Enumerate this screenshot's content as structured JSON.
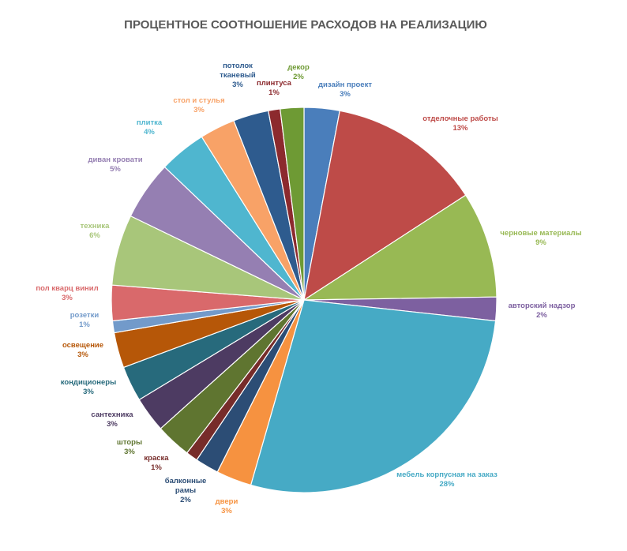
{
  "chart_data": {
    "type": "pie",
    "title": "ПРОЦЕНТНОЕ СООТНОШЕНИЕ РАСХОДОВ НА РЕАЛИЗАЦИЮ",
    "legend": "none",
    "start": "top, clockwise",
    "slices": [
      {
        "name": "дизайн проект",
        "value": 3,
        "label": "3%",
        "color": "#4A7EBB"
      },
      {
        "name": "отделочные работы",
        "value": 13,
        "label": "13%",
        "color": "#BE4B48"
      },
      {
        "name": "черновые материалы",
        "value": 9,
        "label": "9%",
        "color": "#98B954"
      },
      {
        "name": "авторский надзор",
        "value": 2,
        "label": "2%",
        "color": "#7D60A0"
      },
      {
        "name": "мебель корпусная на заказ",
        "value": 28,
        "label": "28%",
        "color": "#46AAC5"
      },
      {
        "name": "двери",
        "value": 3,
        "label": "3%",
        "color": "#F69240"
      },
      {
        "name": "балконные рамы",
        "value": 2,
        "label": "2%",
        "color": "#2C4D75"
      },
      {
        "name": "краска",
        "value": 1,
        "label": "1%",
        "color": "#772C2A"
      },
      {
        "name": "шторы",
        "value": 3,
        "label": "3%",
        "color": "#5F7530"
      },
      {
        "name": "сантехника",
        "value": 3,
        "label": "3%",
        "color": "#4D3B62"
      },
      {
        "name": "кондиционеры",
        "value": 3,
        "label": "3%",
        "color": "#276A7C"
      },
      {
        "name": "освещение",
        "value": 3,
        "label": "3%",
        "color": "#B65708"
      },
      {
        "name": "розетки",
        "value": 1,
        "label": "1%",
        "color": "#729ACA"
      },
      {
        "name": "пол кварц винил",
        "value": 3,
        "label": "3%",
        "color": "#D9696B"
      },
      {
        "name": "техника",
        "value": 6,
        "label": "6%",
        "color": "#A8C67A"
      },
      {
        "name": "диван кровати",
        "value": 5,
        "label": "5%",
        "color": "#957FB2"
      },
      {
        "name": "плитка",
        "value": 4,
        "label": "4%",
        "color": "#4FB6CF"
      },
      {
        "name": "стол и стулья",
        "value": 3,
        "label": "3%",
        "color": "#F8A267"
      },
      {
        "name": "потолок тканевый",
        "value": 3,
        "label": "3%",
        "color": "#2E5B8E"
      },
      {
        "name": "плинтуса",
        "value": 1,
        "label": "1%",
        "color": "#8C2A2E"
      },
      {
        "name": "декор",
        "value": 2,
        "label": "2%",
        "color": "#6E9A34"
      }
    ]
  }
}
